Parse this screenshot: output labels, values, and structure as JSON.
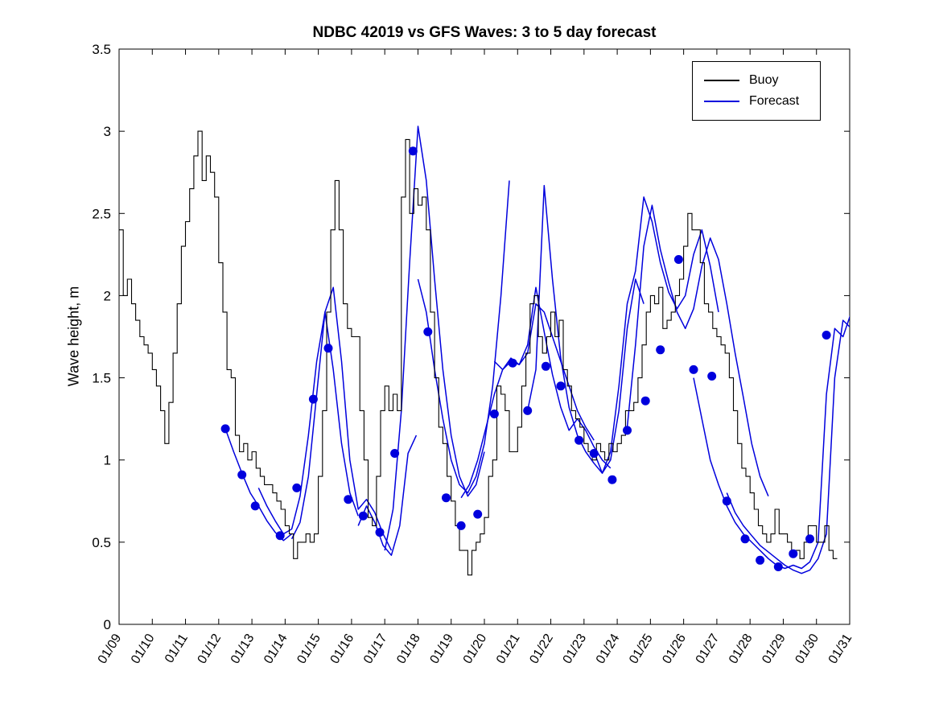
{
  "figure": {
    "background": "#ffffff"
  },
  "chart_data": {
    "type": "line",
    "title": "NDBC 42019 vs GFS Waves: 3 to 5 day forecast",
    "xlabel": "",
    "ylabel": "Wave height, m",
    "xlim": [
      0,
      22
    ],
    "ylim": [
      0,
      3.5
    ],
    "grid": false,
    "legend_position": "upper right",
    "legend": [
      "Buoy",
      "Forecast"
    ],
    "colors": {
      "buoy": "#000000",
      "forecast": "#0000dd"
    },
    "xticks": [
      0,
      1,
      2,
      3,
      4,
      5,
      6,
      7,
      8,
      9,
      10,
      11,
      12,
      13,
      14,
      15,
      16,
      17,
      18,
      19,
      20,
      21,
      22
    ],
    "xtick_labels": [
      "01/09",
      "01/10",
      "01/11",
      "01/12",
      "01/13",
      "01/14",
      "01/15",
      "01/16",
      "01/17",
      "01/18",
      "01/19",
      "01/20",
      "01/21",
      "01/22",
      "01/23",
      "01/24",
      "01/25",
      "01/26",
      "01/27",
      "01/28",
      "01/29",
      "01/30",
      "01/31"
    ],
    "yticks": [
      0,
      0.5,
      1,
      1.5,
      2,
      2.5,
      3,
      3.5
    ],
    "ytick_labels": [
      "0",
      "0.5",
      "1",
      "1.5",
      "2",
      "2.5",
      "3",
      "3.5"
    ],
    "series": [
      {
        "name": "Buoy",
        "color": "#000000",
        "style": "step",
        "x0": 0,
        "dx": 0.125,
        "y": [
          2.4,
          2.0,
          2.1,
          1.95,
          1.85,
          1.75,
          1.7,
          1.65,
          1.55,
          1.45,
          1.3,
          1.1,
          1.35,
          1.65,
          1.95,
          2.3,
          2.45,
          2.65,
          2.85,
          3.0,
          2.7,
          2.85,
          2.75,
          2.6,
          2.2,
          1.9,
          1.55,
          1.5,
          1.15,
          1.05,
          1.1,
          1.0,
          1.05,
          0.95,
          0.9,
          0.85,
          0.85,
          0.8,
          0.75,
          0.7,
          0.6,
          0.55,
          0.4,
          0.5,
          0.5,
          0.55,
          0.5,
          0.55,
          0.9,
          1.3,
          1.9,
          2.4,
          2.7,
          2.4,
          1.95,
          1.8,
          1.75,
          1.75,
          1.3,
          1.0,
          0.65,
          0.6,
          0.9,
          1.3,
          1.45,
          1.3,
          1.4,
          1.3,
          2.6,
          2.95,
          2.5,
          2.65,
          2.55,
          2.6,
          2.4,
          1.9,
          1.5,
          1.2,
          1.1,
          0.9,
          0.75,
          0.6,
          0.45,
          0.45,
          0.3,
          0.45,
          0.5,
          0.55,
          0.65,
          0.9,
          1.0,
          1.45,
          1.4,
          1.3,
          1.05,
          1.05,
          1.2,
          1.45,
          1.65,
          1.95,
          2.0,
          1.75,
          1.65,
          1.75,
          1.9,
          1.75,
          1.85,
          1.55,
          1.45,
          1.3,
          1.25,
          1.2,
          1.1,
          1.05,
          1.0,
          1.1,
          1.05,
          1.0,
          1.1,
          1.05,
          1.1,
          1.15,
          1.3,
          1.3,
          1.35,
          1.5,
          1.7,
          1.9,
          2.0,
          1.95,
          2.05,
          1.8,
          1.85,
          1.9,
          2.0,
          2.1,
          2.3,
          2.5,
          2.4,
          2.4,
          2.2,
          1.95,
          1.9,
          1.8,
          1.75,
          1.7,
          1.65,
          1.5,
          1.3,
          1.1,
          0.95,
          0.9,
          0.8,
          0.7,
          0.6,
          0.55,
          0.5,
          0.55,
          0.7,
          0.55,
          0.55,
          0.5,
          0.45,
          0.45,
          0.4,
          0.5,
          0.6,
          0.6,
          0.5,
          0.5,
          0.6,
          0.45,
          0.4,
          0.4
        ]
      },
      {
        "name": "Forecast",
        "color": "#0000dd",
        "style": "line",
        "segments": [
          {
            "x0": 3.2,
            "dx": 0.25,
            "y": [
              1.19,
              1.05,
              0.92,
              0.8,
              0.72,
              0.63,
              0.56,
              0.51,
              0.55
            ]
          },
          {
            "x0": 4.2,
            "dx": 0.25,
            "y": [
              0.83,
              0.72,
              0.63,
              0.55,
              0.58,
              0.78,
              1.15,
              1.6,
              1.9,
              1.55,
              1.1,
              0.8,
              0.66
            ]
          },
          {
            "x0": 5.2,
            "dx": 0.25,
            "y": [
              0.52,
              0.62,
              0.9,
              1.4,
              1.9,
              2.05,
              1.6,
              1.0,
              0.7,
              0.76,
              0.68,
              0.55,
              0.45
            ]
          },
          {
            "x0": 7.2,
            "dx": 0.25,
            "y": [
              0.6,
              0.72,
              0.62,
              0.48,
              0.42,
              0.6,
              1.04,
              1.15
            ]
          },
          {
            "x0": 8.0,
            "dx": 0.25,
            "y": [
              0.45,
              0.7,
              1.3,
              2.2,
              3.03,
              2.7,
              2.1,
              1.55,
              1.15,
              0.9,
              0.78,
              0.85,
              1.05
            ]
          },
          {
            "x0": 9.0,
            "dx": 0.25,
            "y": [
              2.1,
              1.9,
              1.55,
              1.25,
              1.0,
              0.85,
              0.8,
              0.9,
              1.1,
              1.45,
              2.0,
              2.7
            ]
          },
          {
            "x0": 10.3,
            "dx": 0.25,
            "y": [
              0.77,
              0.85,
              1.0,
              1.2,
              1.4,
              1.55,
              1.6,
              1.58,
              1.65,
              1.95,
              1.9,
              1.75,
              1.6,
              1.45,
              1.3,
              1.2,
              1.12
            ]
          },
          {
            "x0": 11.3,
            "dx": 0.25,
            "y": [
              1.6,
              1.55,
              1.62,
              1.58,
              1.7,
              2.05,
              1.78,
              1.52,
              1.32,
              1.18,
              1.25,
              1.18,
              1.08,
              1.0,
              0.95
            ]
          },
          {
            "x0": 12.3,
            "dx": 0.25,
            "y": [
              1.3,
              1.55,
              2.67,
              2.1,
              1.62,
              1.32,
              1.15,
              1.05,
              0.98,
              0.92,
              1.0,
              1.3,
              1.8,
              2.1,
              1.95
            ]
          },
          {
            "x0": 14.3,
            "dx": 0.25,
            "y": [
              1.05,
              0.92,
              1.05,
              1.45,
              1.95,
              2.15,
              2.6,
              2.45,
              2.2,
              2.02,
              1.92,
              2.0,
              2.25,
              2.4,
              2.18,
              1.9
            ]
          },
          {
            "x0": 15.3,
            "dx": 0.25,
            "y": [
              1.2,
              1.7,
              2.3,
              2.55,
              2.28,
              2.08,
              1.9,
              1.8,
              1.92,
              2.18,
              2.35,
              2.22,
              1.95,
              1.65,
              1.38,
              1.1,
              0.9,
              0.78
            ]
          },
          {
            "x0": 17.3,
            "dx": 0.25,
            "y": [
              1.5,
              1.25,
              1.0,
              0.85,
              0.72,
              0.62,
              0.55,
              0.5,
              0.45,
              0.4,
              0.36,
              0.34,
              0.36,
              0.34,
              0.38,
              0.5,
              1.4,
              1.8,
              1.75,
              1.9
            ]
          },
          {
            "x0": 18.3,
            "dx": 0.25,
            "y": [
              0.8,
              0.68,
              0.6,
              0.54,
              0.48,
              0.44,
              0.4,
              0.36,
              0.33,
              0.31,
              0.33,
              0.4,
              0.55,
              1.5,
              1.85,
              1.8
            ]
          }
        ]
      },
      {
        "name": "Forecast markers",
        "color": "#0000dd",
        "style": "dots",
        "points": [
          [
            3.2,
            1.19
          ],
          [
            3.7,
            0.91
          ],
          [
            4.1,
            0.72
          ],
          [
            4.85,
            0.54
          ],
          [
            5.35,
            0.83
          ],
          [
            5.85,
            1.37
          ],
          [
            6.3,
            1.68
          ],
          [
            6.9,
            0.76
          ],
          [
            7.35,
            0.66
          ],
          [
            7.85,
            0.56
          ],
          [
            8.3,
            1.04
          ],
          [
            8.85,
            2.88
          ],
          [
            9.3,
            1.78
          ],
          [
            9.85,
            0.77
          ],
          [
            10.3,
            0.6
          ],
          [
            10.8,
            0.67
          ],
          [
            11.3,
            1.28
          ],
          [
            11.85,
            1.59
          ],
          [
            12.3,
            1.3
          ],
          [
            12.85,
            1.57
          ],
          [
            13.3,
            1.45
          ],
          [
            13.85,
            1.12
          ],
          [
            14.3,
            1.04
          ],
          [
            14.85,
            0.88
          ],
          [
            15.3,
            1.18
          ],
          [
            15.85,
            1.36
          ],
          [
            16.3,
            1.67
          ],
          [
            16.85,
            2.22
          ],
          [
            17.3,
            1.55
          ],
          [
            17.85,
            1.51
          ],
          [
            18.3,
            0.75
          ],
          [
            18.85,
            0.52
          ],
          [
            19.3,
            0.39
          ],
          [
            19.85,
            0.35
          ],
          [
            20.3,
            0.43
          ],
          [
            20.8,
            0.52
          ],
          [
            21.3,
            1.76
          ]
        ]
      }
    ]
  }
}
